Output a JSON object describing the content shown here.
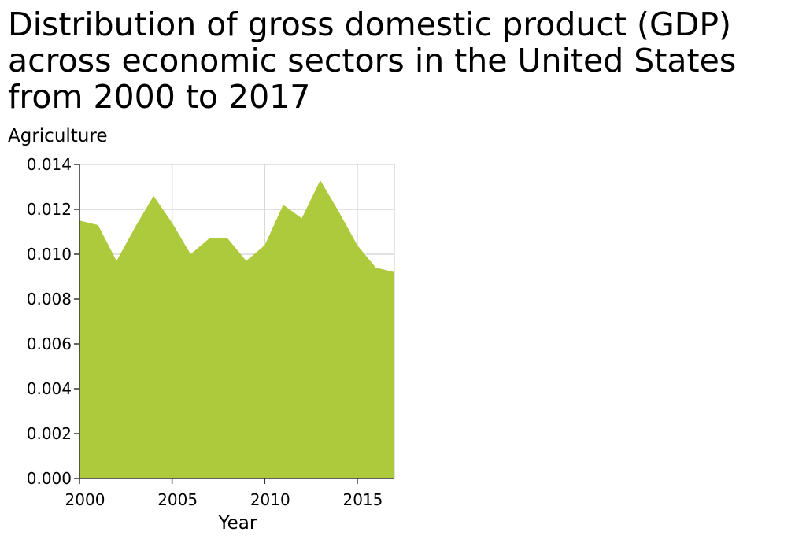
{
  "chart_data": {
    "type": "area",
    "title": "Distribution of gross domestic product (GDP)\nacross economic sectors in the United States\nfrom 2000 to 2017",
    "xlabel": "Year",
    "ylabel": "Agriculture",
    "x": [
      2000,
      2001,
      2002,
      2003,
      2004,
      2005,
      2006,
      2007,
      2008,
      2009,
      2010,
      2011,
      2012,
      2013,
      2014,
      2015,
      2016,
      2017
    ],
    "series": [
      {
        "values": [
          0.0115,
          0.0113,
          0.0097,
          0.0112,
          0.0126,
          0.0114,
          0.01,
          0.0107,
          0.0107,
          0.0097,
          0.0104,
          0.0122,
          0.0116,
          0.0133,
          0.0119,
          0.0104,
          0.0094,
          0.0092
        ],
        "color": "#adc93c"
      }
    ],
    "xlim": [
      2000,
      2017
    ],
    "ylim": [
      0,
      0.014
    ],
    "xticks": [
      2000,
      2005,
      2010,
      2015
    ],
    "yticks": [
      0.0,
      0.002,
      0.004,
      0.006,
      0.008,
      0.01,
      0.012,
      0.014
    ],
    "ytick_labels": [
      "0.000",
      "0.002",
      "0.004",
      "0.006",
      "0.008",
      "0.010",
      "0.012",
      "0.014"
    ],
    "xtick_labels": [
      "2000",
      "2005",
      "2010",
      "2015"
    ],
    "grid": true,
    "legend": false
  }
}
